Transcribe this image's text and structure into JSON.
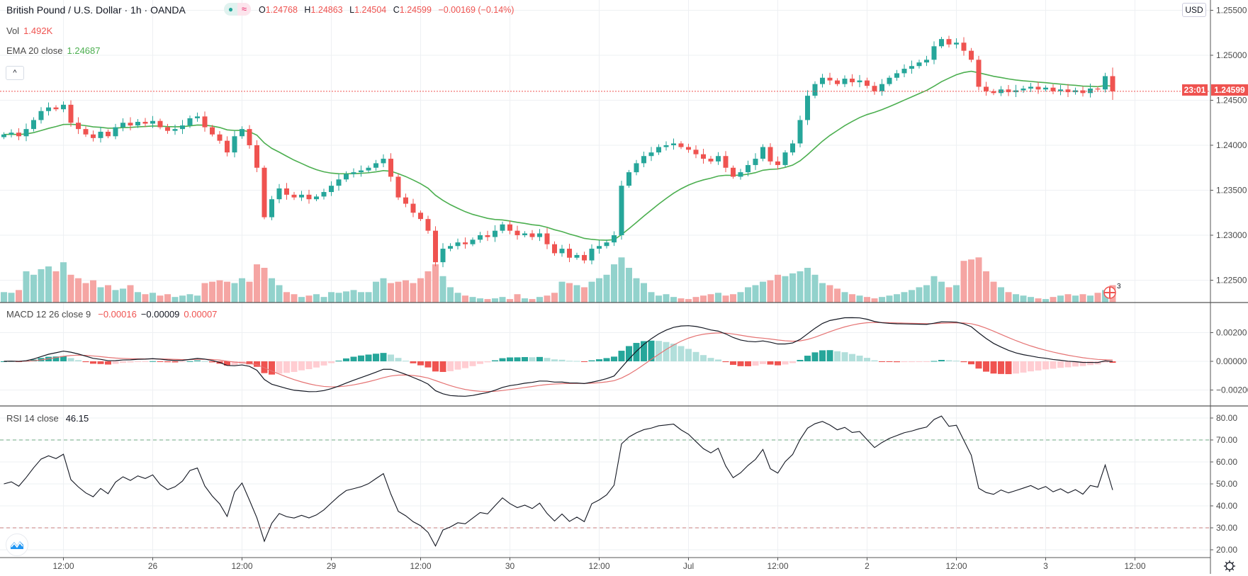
{
  "header": {
    "title": "British Pound / U.S. Dollar · 1h · OANDA",
    "status_dot": "●",
    "status_wave": "≈",
    "ohlc": {
      "o_label": "O",
      "o": "1.24768",
      "h_label": "H",
      "h": "1.24863",
      "l_label": "L",
      "l": "1.24504",
      "c_label": "C",
      "c": "1.24599",
      "change": "−0.00169 (−0.14%)"
    },
    "vol_label": "Vol",
    "vol_value": "1.492K",
    "ema_label": "EMA 20 close",
    "ema_value": "1.24687",
    "collapse_icon": "^"
  },
  "macd_legend": {
    "label": "MACD 12 26 close 9",
    "hist": "−0.00016",
    "macd": "−0.00009",
    "signal": "0.00007"
  },
  "rsi_legend": {
    "label": "RSI 14 close",
    "value": "46.15"
  },
  "price_axis": {
    "currency": "USD",
    "last_price": "1.24599",
    "countdown": "23:01"
  },
  "event_marker": {
    "count": "3"
  },
  "colors": {
    "up": "#26a69a",
    "down": "#ef5350",
    "ema": "#4caf50",
    "macd": "#131722",
    "signal": "#e57373",
    "rsi": "#131722",
    "grid": "#eef0f3"
  },
  "chart_data": {
    "type": "candlestick",
    "symbol": "GBPUSD",
    "interval": "1h",
    "last_candle": {
      "o": 1.24768,
      "h": 1.24863,
      "l": 1.24504,
      "c": 1.24599
    },
    "closes": [
      1.2412,
      1.2414,
      1.241,
      1.2418,
      1.2428,
      1.2438,
      1.2442,
      1.244,
      1.2445,
      1.2425,
      1.2418,
      1.2412,
      1.2408,
      1.2415,
      1.241,
      1.242,
      1.2425,
      1.2422,
      1.2426,
      1.2424,
      1.2427,
      1.242,
      1.2416,
      1.2418,
      1.2422,
      1.243,
      1.2432,
      1.242,
      1.2412,
      1.2405,
      1.2392,
      1.241,
      1.2418,
      1.24,
      1.2375,
      1.232,
      1.234,
      1.2352,
      1.2345,
      1.2342,
      1.2345,
      1.234,
      1.2343,
      1.2348,
      1.2355,
      1.2362,
      1.2368,
      1.237,
      1.2372,
      1.2375,
      1.238,
      1.2385,
      1.2365,
      1.2342,
      1.2335,
      1.2325,
      1.2318,
      1.2305,
      1.227,
      1.2285,
      1.2288,
      1.2292,
      1.229,
      1.2295,
      1.23,
      1.2298,
      1.2305,
      1.2312,
      1.2305,
      1.23,
      1.2302,
      1.2298,
      1.2302,
      1.229,
      1.228,
      1.2285,
      1.2275,
      1.2278,
      1.2272,
      1.2285,
      1.2288,
      1.2292,
      1.23,
      1.2355,
      1.237,
      1.238,
      1.2388,
      1.2392,
      1.2398,
      1.24,
      1.2402,
      1.2398,
      1.2395,
      1.239,
      1.2385,
      1.2382,
      1.2388,
      1.2375,
      1.2365,
      1.237,
      1.2378,
      1.2385,
      1.2398,
      1.2382,
      1.2378,
      1.2392,
      1.2402,
      1.2428,
      1.2455,
      1.2468,
      1.2475,
      1.2472,
      1.2468,
      1.2474,
      1.247,
      1.2472,
      1.2466,
      1.246,
      1.2468,
      1.2475,
      1.248,
      1.2485,
      1.2488,
      1.2492,
      1.2495,
      1.251,
      1.2518,
      1.2512,
      1.2514,
      1.2505,
      1.2495,
      1.2465,
      1.246,
      1.2458,
      1.2462,
      1.2459,
      1.2461,
      1.2463,
      1.2465,
      1.2462,
      1.2464,
      1.246,
      1.2462,
      1.2459,
      1.2461,
      1.2458,
      1.2463,
      1.2462,
      1.24768,
      1.24599
    ],
    "volumes": [
      15,
      14,
      18,
      45,
      40,
      48,
      52,
      45,
      58,
      40,
      35,
      28,
      32,
      22,
      25,
      18,
      20,
      25,
      15,
      12,
      14,
      10,
      12,
      8,
      10,
      12,
      10,
      28,
      30,
      32,
      30,
      28,
      35,
      30,
      55,
      50,
      35,
      25,
      15,
      12,
      8,
      10,
      12,
      8,
      15,
      14,
      16,
      18,
      15,
      15,
      30,
      35,
      28,
      30,
      32,
      28,
      35,
      45,
      55,
      38,
      22,
      14,
      10,
      8,
      6,
      5,
      6,
      8,
      5,
      12,
      6,
      5,
      8,
      10,
      14,
      30,
      28,
      25,
      22,
      30,
      35,
      40,
      55,
      65,
      50,
      35,
      28,
      15,
      10,
      12,
      8,
      6,
      5,
      8,
      10,
      12,
      14,
      10,
      12,
      15,
      22,
      25,
      30,
      32,
      40,
      38,
      42,
      45,
      50,
      40,
      28,
      25,
      20,
      15,
      12,
      10,
      8,
      6,
      8,
      10,
      12,
      15,
      18,
      22,
      25,
      38,
      30,
      22,
      25,
      60,
      62,
      65,
      45,
      30,
      22,
      15,
      12,
      10,
      8,
      6,
      5,
      8,
      10,
      12,
      10,
      12,
      10,
      14,
      18,
      25
    ],
    "indicators": {
      "ema_period": 20,
      "macd": [
        12,
        26,
        9
      ],
      "rsi_period": 14,
      "rsi_levels": [
        70,
        30
      ]
    },
    "price_ticks": [
      {
        "v": 1.255,
        "t": "1.25500"
      },
      {
        "v": 1.25,
        "t": "1.25000"
      },
      {
        "v": 1.245,
        "t": "1.24500"
      },
      {
        "v": 1.24,
        "t": "1.24000"
      },
      {
        "v": 1.235,
        "t": "1.23500"
      },
      {
        "v": 1.23,
        "t": "1.23000"
      },
      {
        "v": 1.225,
        "t": "1.22500"
      }
    ],
    "macd_ticks": [
      {
        "v": 0.002,
        "t": "0.00200"
      },
      {
        "v": 0,
        "t": "0.00000"
      },
      {
        "v": -0.002,
        "t": "−0.00200"
      }
    ],
    "rsi_ticks": [
      {
        "v": 80,
        "t": "80.00"
      },
      {
        "v": 70,
        "t": "70.00"
      },
      {
        "v": 60,
        "t": "60.00"
      },
      {
        "v": 50,
        "t": "50.00"
      },
      {
        "v": 40,
        "t": "40.00"
      },
      {
        "v": 30,
        "t": "30.00"
      },
      {
        "v": 20,
        "t": "20.00"
      }
    ],
    "time_ticks": [
      {
        "i": 8,
        "t": "12:00"
      },
      {
        "i": 20,
        "t": "26"
      },
      {
        "i": 32,
        "t": "12:00"
      },
      {
        "i": 44,
        "t": "29"
      },
      {
        "i": 56,
        "t": "12:00"
      },
      {
        "i": 68,
        "t": "30"
      },
      {
        "i": 80,
        "t": "12:00"
      },
      {
        "i": 92,
        "t": "Jul"
      },
      {
        "i": 104,
        "t": "12:00"
      },
      {
        "i": 116,
        "t": "2"
      },
      {
        "i": 128,
        "t": "12:00"
      },
      {
        "i": 140,
        "t": "3"
      },
      {
        "i": 152,
        "t": "12:00"
      }
    ]
  }
}
